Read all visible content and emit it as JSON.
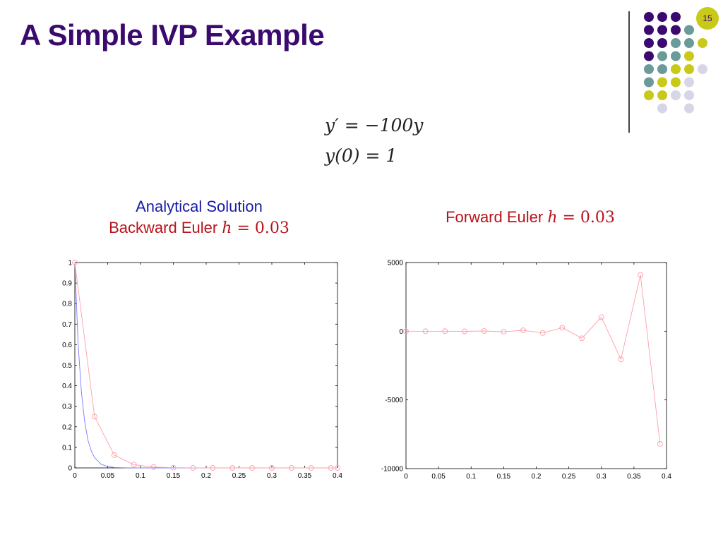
{
  "slide": {
    "title": "A Simple IVP Example",
    "page_number": "15"
  },
  "equations": {
    "line1": "y′ = −100y",
    "line2": "y(0) = 1"
  },
  "colors": {
    "title": "#3b0a6e",
    "analytical": "#1a1aa6",
    "euler": "#b8121a",
    "plot_analytical_line": "#7a7aff",
    "plot_euler_line": "#ff9ea8",
    "dot_purple": "#3b0a6e",
    "dot_teal": "#6b9a9a",
    "dot_yellow": "#c9c91a",
    "dot_lavender": "#d6d6e8"
  },
  "captions": {
    "left_line1": "Analytical Solution",
    "left_line2_text": "Backward Euler ",
    "left_line2_math_var": "h",
    "left_line2_math_rest": " = 0.03",
    "right_text": "Forward Euler ",
    "right_math_var": "h",
    "right_math_rest": " = 0.03"
  },
  "chart_data": [
    {
      "type": "line",
      "title": "",
      "xlabel": "",
      "ylabel": "",
      "xlim": [
        0,
        0.4
      ],
      "ylim": [
        0,
        1
      ],
      "xticks": [
        "0",
        "0.05",
        "0.1",
        "0.15",
        "0.2",
        "0.25",
        "0.3",
        "0.35",
        "0.4"
      ],
      "yticks": [
        "0",
        "0.1",
        "0.2",
        "0.3",
        "0.4",
        "0.5",
        "0.6",
        "0.7",
        "0.8",
        "0.9",
        "1"
      ],
      "grid": false,
      "series": [
        {
          "color": "#7a7aff",
          "marker": "none",
          "x": [
            0,
            0.005,
            0.01,
            0.015,
            0.02,
            0.025,
            0.03,
            0.04,
            0.05,
            0.06,
            0.08,
            0.1,
            0.15,
            0.2,
            0.25,
            0.3,
            0.35,
            0.4
          ],
          "y": [
            1,
            0.607,
            0.368,
            0.223,
            0.135,
            0.082,
            0.05,
            0.018,
            0.007,
            0.002,
            0.0003,
            5e-05,
            0,
            0,
            0,
            0,
            0,
            0
          ]
        },
        {
          "color": "#ff9ea8",
          "marker": "circle",
          "x": [
            0,
            0.03,
            0.06,
            0.09,
            0.12,
            0.15,
            0.18,
            0.21,
            0.24,
            0.27,
            0.3,
            0.33,
            0.36,
            0.39,
            0.4
          ],
          "y": [
            1,
            0.25,
            0.0625,
            0.0156,
            0.0039,
            0.001,
            0.0002,
            6e-05,
            2e-05,
            0,
            0,
            0,
            0,
            0,
            0
          ]
        }
      ]
    },
    {
      "type": "line",
      "title": "",
      "xlabel": "",
      "ylabel": "",
      "xlim": [
        0,
        0.4
      ],
      "ylim": [
        -10000,
        5000
      ],
      "xticks": [
        "0",
        "0.05",
        "0.1",
        "0.15",
        "0.2",
        "0.25",
        "0.3",
        "0.35",
        "0.4"
      ],
      "yticks": [
        "-10000",
        "-5000",
        "0",
        "5000"
      ],
      "grid": false,
      "series": [
        {
          "color": "#ff9ea8",
          "marker": "circle",
          "x": [
            0,
            0.03,
            0.06,
            0.09,
            0.12,
            0.15,
            0.18,
            0.21,
            0.24,
            0.27,
            0.3,
            0.33,
            0.36,
            0.39
          ],
          "y": [
            1,
            -2,
            4,
            -8,
            16,
            -32,
            64,
            -128,
            256,
            -512,
            1024,
            -2048,
            4096,
            -8192
          ]
        }
      ]
    }
  ]
}
